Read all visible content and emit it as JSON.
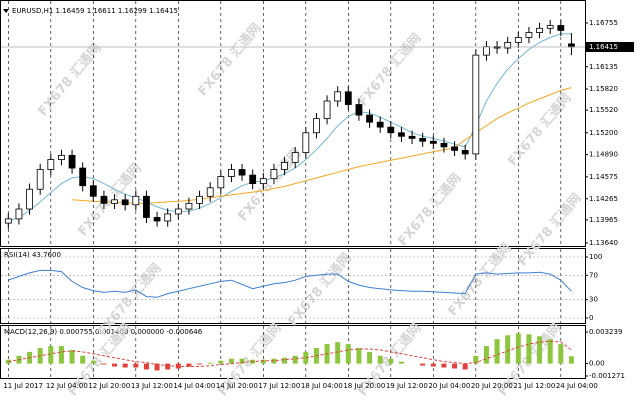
{
  "watermark": "FX678 汇通网",
  "chart_data": [
    {
      "type": "candlestick",
      "title": "EURUSD,H1 1.16459 1.16611 1.16299 1.16415",
      "categories": [
        "11 Jul 2017",
        null,
        null,
        null,
        "12 Jul 04:00",
        null,
        null,
        null,
        "12 Jul 20:00",
        null,
        null,
        null,
        "13 Jul 12:00",
        null,
        null,
        null,
        "14 Jul 04:00",
        null,
        null,
        null,
        "14 Jul 20:00",
        null,
        null,
        null,
        "17 Jul 12:00",
        null,
        null,
        null,
        "18 Jul 04:00",
        null,
        null,
        null,
        "18 Jul 20:00",
        null,
        null,
        null,
        "19 Jul 12:00",
        null,
        null,
        null,
        "20 Jul 04:00",
        null,
        null,
        null,
        "20 Jul 20:00",
        null,
        null,
        null,
        "21 Jul 12:00",
        null,
        null,
        null,
        "24 Jul 04:00",
        null
      ],
      "open": [
        1.1392,
        1.1398,
        1.1412,
        1.144,
        1.1468,
        1.1482,
        1.1488,
        1.147,
        1.1445,
        1.143,
        1.142,
        1.1425,
        1.1418,
        1.143,
        1.14,
        1.1395,
        1.1405,
        1.1412,
        1.142,
        1.143,
        1.1442,
        1.1458,
        1.1468,
        1.146,
        1.1448,
        1.1455,
        1.1468,
        1.1478,
        1.1492,
        1.152,
        1.154,
        1.1565,
        1.1578,
        1.156,
        1.1545,
        1.1535,
        1.1528,
        1.152,
        1.1515,
        1.1512,
        1.1508,
        1.1505,
        1.15,
        1.1495,
        1.149,
        1.163,
        1.1642,
        1.164,
        1.1648,
        1.1655,
        1.1662,
        1.1668,
        1.1672,
        1.16459
      ],
      "high": [
        1.1406,
        1.142,
        1.1448,
        1.1476,
        1.149,
        1.1496,
        1.1496,
        1.1478,
        1.1453,
        1.1438,
        1.1433,
        1.1433,
        1.1438,
        1.1438,
        1.1408,
        1.1413,
        1.142,
        1.1428,
        1.1438,
        1.145,
        1.1466,
        1.1476,
        1.1476,
        1.1468,
        1.1463,
        1.1476,
        1.1486,
        1.15,
        1.1528,
        1.1548,
        1.1573,
        1.1586,
        1.1586,
        1.1568,
        1.1553,
        1.1543,
        1.1536,
        1.1528,
        1.1523,
        1.152,
        1.1516,
        1.1513,
        1.1508,
        1.1503,
        1.1638,
        1.165,
        1.165,
        1.1656,
        1.1663,
        1.167,
        1.1676,
        1.168,
        1.168,
        1.16611
      ],
      "low": [
        1.1384,
        1.139,
        1.1404,
        1.1432,
        1.146,
        1.1474,
        1.1462,
        1.1437,
        1.1422,
        1.1412,
        1.1412,
        1.141,
        1.141,
        1.1392,
        1.1387,
        1.1387,
        1.1397,
        1.1404,
        1.1412,
        1.1422,
        1.1434,
        1.145,
        1.1452,
        1.144,
        1.144,
        1.1447,
        1.146,
        1.147,
        1.1484,
        1.1512,
        1.1532,
        1.1557,
        1.1552,
        1.1537,
        1.1527,
        1.152,
        1.1512,
        1.1507,
        1.1504,
        1.15,
        1.1497,
        1.1492,
        1.1487,
        1.1482,
        1.1482,
        1.1622,
        1.1632,
        1.1632,
        1.164,
        1.1647,
        1.1654,
        1.166,
        1.1657,
        1.16299
      ],
      "close": [
        1.1398,
        1.1412,
        1.144,
        1.1468,
        1.1482,
        1.1488,
        1.147,
        1.1445,
        1.143,
        1.142,
        1.1425,
        1.1418,
        1.143,
        1.14,
        1.1395,
        1.1405,
        1.1412,
        1.142,
        1.143,
        1.1442,
        1.1458,
        1.1468,
        1.146,
        1.1448,
        1.1455,
        1.1468,
        1.1478,
        1.1492,
        1.152,
        1.154,
        1.1565,
        1.1578,
        1.156,
        1.1545,
        1.1535,
        1.1528,
        1.152,
        1.1515,
        1.1512,
        1.1508,
        1.1505,
        1.15,
        1.1495,
        1.149,
        1.163,
        1.1642,
        1.164,
        1.1648,
        1.1655,
        1.1662,
        1.1668,
        1.1672,
        1.1665,
        1.16415
      ],
      "lines": [
        {
          "color": "#6fb7d6",
          "values": [
            1.1395,
            1.14,
            1.141,
            1.1422,
            1.1435,
            1.1448,
            1.1456,
            1.1458,
            1.1455,
            1.1448,
            1.144,
            1.1433,
            1.1428,
            1.1422,
            1.1415,
            1.141,
            1.1408,
            1.1409,
            1.1413,
            1.142,
            1.1428,
            1.1437,
            1.1445,
            1.145,
            1.1452,
            1.1456,
            1.1462,
            1.147,
            1.1482,
            1.1496,
            1.1512,
            1.153,
            1.1543,
            1.155,
            1.1548,
            1.1542,
            1.1535,
            1.1528,
            1.152,
            1.1515,
            1.1512,
            1.1508,
            1.1504,
            1.15,
            1.153,
            1.1565,
            1.159,
            1.161,
            1.1625,
            1.1638,
            1.1648,
            1.1655,
            1.166,
            1.166
          ]
        },
        {
          "color": "#f5a623",
          "values": [
            null,
            null,
            null,
            null,
            null,
            null,
            1.1425,
            1.1424,
            1.1423,
            1.1422,
            1.1421,
            1.1421,
            1.142,
            1.142,
            1.1421,
            1.1422,
            1.1423,
            1.1424,
            1.1426,
            1.1428,
            1.143,
            1.1432,
            1.1434,
            1.1436,
            1.1438,
            1.1441,
            1.1444,
            1.1448,
            1.1452,
            1.1456,
            1.146,
            1.1464,
            1.1468,
            1.1472,
            1.1475,
            1.1478,
            1.1481,
            1.1484,
            1.1487,
            1.149,
            1.1493,
            1.1496,
            1.1499,
            1.151,
            1.152,
            1.153,
            1.154,
            1.1548,
            1.1555,
            1.1562,
            1.1568,
            1.1574,
            1.158,
            1.1584
          ]
        }
      ],
      "ylim": [
        1.1361,
        1.1701
      ],
      "yticks": [
        {
          "value": 1.1364,
          "label": "1.13640"
        },
        1.13965,
        1.14265,
        1.14575,
        {
          "value": 1.1489,
          "label": "1.14890"
        },
        {
          "value": 1.152,
          "label": "1.15200"
        },
        {
          "value": 1.1552,
          "label": "1.15520"
        },
        {
          "value": 1.1582,
          "label": "1.15820"
        },
        1.16135,
        1.16755
      ],
      "grid": true
    },
    {
      "type": "line",
      "title": "RSI(14) 43.7600",
      "color": "#3d7fd1",
      "values": [
        62,
        68,
        74,
        78,
        78,
        76,
        60,
        50,
        45,
        42,
        44,
        42,
        46,
        35,
        34,
        40,
        44,
        48,
        52,
        56,
        60,
        62,
        55,
        48,
        52,
        56,
        58,
        62,
        68,
        70,
        72,
        72,
        60,
        54,
        50,
        48,
        46,
        45,
        44,
        44,
        43,
        42,
        41,
        40,
        72,
        74,
        72,
        73,
        74,
        74,
        75,
        72,
        62,
        43.76
      ],
      "ylim": [
        0,
        100
      ],
      "yticks": [
        0,
        30,
        70,
        100
      ]
    },
    {
      "type": "bar",
      "title": "MACD(12,26,9) 0.000755 0.001400 0.000000 -0.000646",
      "positive_color": "#8cc63f",
      "negative_color": "#e0413a",
      "values": [
        0.0004,
        0.0008,
        0.0012,
        0.0016,
        0.0018,
        0.0018,
        0.0014,
        0.0008,
        0.0003,
        -0.0001,
        -0.0003,
        -0.0004,
        -0.0004,
        -0.0006,
        -0.0007,
        -0.0006,
        -0.0005,
        -0.0003,
        -0.0001,
        0.0001,
        0.0003,
        0.0005,
        0.0005,
        0.0004,
        0.0004,
        0.0005,
        0.0006,
        0.0008,
        0.0012,
        0.0016,
        0.002,
        0.0022,
        0.002,
        0.0016,
        0.0012,
        0.0008,
        0.0005,
        0.0002,
        0,
        -0.0002,
        -0.0003,
        -0.0004,
        -0.0005,
        -0.0006,
        0.0008,
        0.0018,
        0.0025,
        0.0029,
        0.0031,
        0.003,
        0.0028,
        0.0025,
        0.002,
        0.000755
      ],
      "signal": {
        "color": "#e0413a",
        "values": [
          0.0002,
          0.0004,
          0.0006,
          0.0008,
          0.001,
          0.0012,
          0.0013,
          0.0012,
          0.001,
          0.0008,
          0.0006,
          0.0004,
          0.0002,
          0.0001,
          -0.0001,
          -0.0002,
          -0.0003,
          -0.0003,
          -0.0003,
          -0.0002,
          -0.0001,
          0,
          0.0001,
          0.0002,
          0.0003,
          0.0003,
          0.0004,
          0.0005,
          0.0006,
          0.0008,
          0.001,
          0.0012,
          0.0014,
          0.0015,
          0.0015,
          0.0014,
          0.0012,
          0.001,
          0.0008,
          0.0006,
          0.0004,
          0.0002,
          0.0001,
          0,
          0.0001,
          0.0005,
          0.0009,
          0.0013,
          0.0017,
          0.002,
          0.0022,
          0.0023,
          0.0022,
          0.0014
        ]
      },
      "ylim": [
        -0.001271,
        0.003239
      ],
      "yticks": [
        -0.001271,
        {
          "value": 0,
          "label": "0.00"
        },
        0.003239
      ]
    }
  ]
}
